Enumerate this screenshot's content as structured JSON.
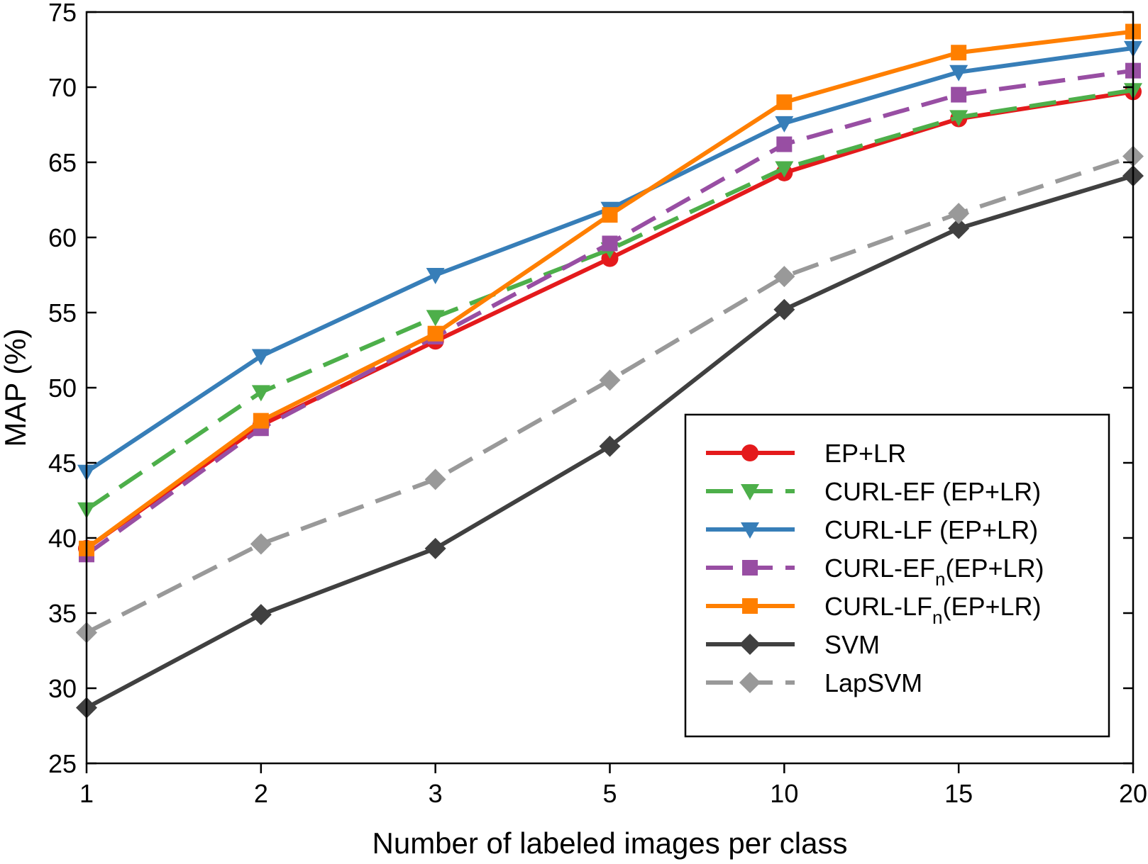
{
  "chart_data": {
    "type": "line",
    "title": "",
    "xlabel": "Number of labeled images per class",
    "ylabel": "MAP (%)",
    "categories": [
      "1",
      "2",
      "3",
      "5",
      "10",
      "15",
      "20"
    ],
    "ylim": [
      25,
      75
    ],
    "yticks": [
      "25",
      "30",
      "35",
      "40",
      "45",
      "50",
      "55",
      "60",
      "65",
      "70",
      "75"
    ],
    "grid": false,
    "legend_position": "bottom-right",
    "series": [
      {
        "name": "EP+LR",
        "label_main": "EP+LR",
        "label_sub": "",
        "label_tail": "",
        "color": "#e41a1c",
        "dash": "solid",
        "marker": "circle",
        "values": [
          39.3,
          47.5,
          53.1,
          58.6,
          64.3,
          67.9,
          69.7
        ]
      },
      {
        "name": "CURL-EF (EP+LR)",
        "label_main": "CURL-EF (EP+LR)",
        "label_sub": "",
        "label_tail": "",
        "color": "#4daf4a",
        "dash": "dashed",
        "marker": "triangle-down",
        "values": [
          41.9,
          49.7,
          54.7,
          59.2,
          64.6,
          68.0,
          69.8
        ]
      },
      {
        "name": "CURL-LF (EP+LR)",
        "label_main": "CURL-LF (EP+LR)",
        "label_sub": "",
        "label_tail": "",
        "color": "#377eb8",
        "dash": "solid",
        "marker": "triangle-down",
        "values": [
          44.4,
          52.1,
          57.5,
          61.9,
          67.6,
          71.0,
          72.6
        ]
      },
      {
        "name": "CURL-EFn(EP+LR)",
        "label_main": "CURL-EF",
        "label_sub": "n",
        "label_tail": "(EP+LR)",
        "color": "#984ea3",
        "dash": "dashed",
        "marker": "square",
        "values": [
          38.9,
          47.3,
          53.4,
          59.6,
          66.2,
          69.5,
          71.1
        ]
      },
      {
        "name": "CURL-LFn(EP+LR)",
        "label_main": "CURL-LF",
        "label_sub": "n",
        "label_tail": "(EP+LR)",
        "color": "#ff7f00",
        "dash": "solid",
        "marker": "square",
        "values": [
          39.3,
          47.8,
          53.6,
          61.5,
          69.0,
          72.3,
          73.7
        ]
      },
      {
        "name": "SVM",
        "label_main": "SVM",
        "label_sub": "",
        "label_tail": "",
        "color": "#404040",
        "dash": "solid",
        "marker": "diamond",
        "values": [
          28.7,
          34.9,
          39.3,
          46.1,
          55.2,
          60.6,
          64.1
        ]
      },
      {
        "name": "LapSVM",
        "label_main": "LapSVM",
        "label_sub": "",
        "label_tail": "",
        "color": "#999999",
        "dash": "dashed",
        "marker": "diamond",
        "values": [
          33.7,
          39.6,
          43.9,
          50.5,
          57.4,
          61.6,
          65.4
        ]
      }
    ]
  }
}
